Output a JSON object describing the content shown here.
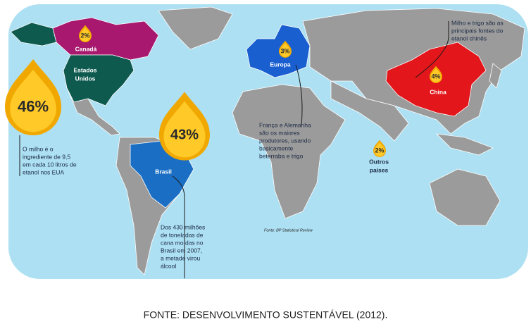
{
  "regions": [
    {
      "name": [
        "Canadá"
      ],
      "share": "2%"
    },
    {
      "name": [
        "Estados",
        "Unidos"
      ],
      "share": "46%"
    },
    {
      "name": [
        "Brasil"
      ],
      "share": "43%"
    },
    {
      "name": [
        "Europa"
      ],
      "share": "3%"
    },
    {
      "name": [
        "China"
      ],
      "share": "4%"
    },
    {
      "name": [
        "Outros",
        "países"
      ],
      "share": "2%"
    }
  ],
  "notes": [
    {
      "lines": [
        "O milho é o",
        "ingrediente de 9,5",
        "em cada 10 litros de",
        "etanol nos EUA"
      ]
    },
    {
      "lines": [
        "Dos 430 milhões",
        "de toneladas de",
        "cana moídas no",
        "Brasil em 2007,",
        "a metade virou",
        "álcool"
      ]
    },
    {
      "lines": [
        "França e Alemanha",
        "são os maiores",
        "produtores, usando",
        "basicamente",
        "beterraba e trigo"
      ]
    },
    {
      "lines": [
        "Milho e trigo são as",
        "principais fontes do",
        "etanol chinês"
      ]
    }
  ],
  "map_source": "Fonte: BP Statistical Review",
  "caption": "FONTE: DESENVOLVIMENTO SUSTENTÁVEL (2012)."
}
